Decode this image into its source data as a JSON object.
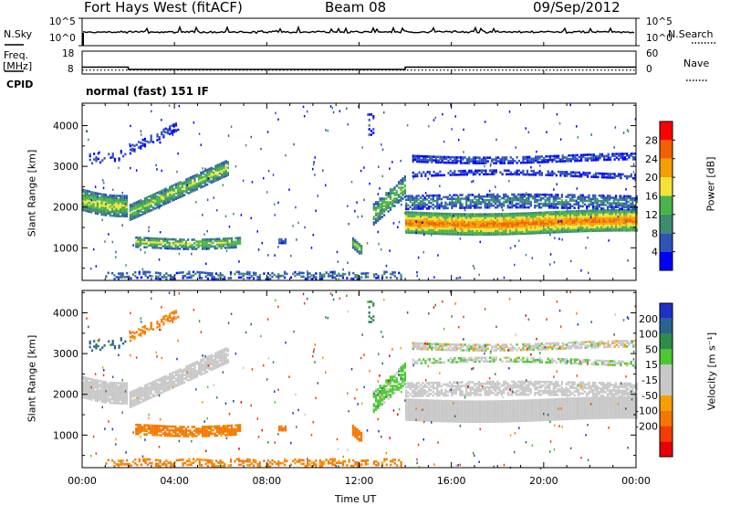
{
  "header": {
    "station": "Fort Hays West (fitACF)",
    "beam": "Beam 08",
    "date": "09/Sep/2012"
  },
  "side_labels": {
    "n_sky": "N.Sky",
    "freq": "Freq.",
    "mhz": "[MHz]",
    "cpid": "CPID",
    "n_search": "N.Search",
    "nave": "Nave"
  },
  "cpid_text": "normal (fast) 151 IF",
  "colors": {
    "power": [
      "#0000ff",
      "#2e54b8",
      "#3c8c6e",
      "#48b44a",
      "#f4e23a",
      "#f4a000",
      "#f46000",
      "#ff0000"
    ],
    "velocity": [
      "#e80000",
      "#f23c00",
      "#f47800",
      "#f5a000",
      "#c8c8c8",
      "#c8c8c8",
      "#4cc832",
      "#2e8c46",
      "#28648c",
      "#1e32c8"
    ]
  },
  "chart_data": [
    {
      "type": "line",
      "title": "Fort Hays West (fitACF)",
      "series": [
        {
          "name": "N.Sky",
          "x": [
            "00:00",
            "24:00"
          ],
          "values": [
            3,
            3
          ]
        }
      ],
      "ytick_labels": [
        "10^5",
        "10^0"
      ],
      "right_ytick_labels": [
        "10^5",
        "10^0"
      ],
      "ylim_labels": [
        "10^0",
        "10^5"
      ]
    },
    {
      "type": "line",
      "x": [
        "00:00",
        "02:00",
        "02:00",
        "14:00",
        "14:00",
        "24:00"
      ],
      "series": [
        {
          "name": "Freq.",
          "values": [
            11.0,
            11.0,
            10.0,
            10.0,
            11.0,
            11.0
          ]
        },
        {
          "name": "Nave",
          "values": [
            9.7,
            9.7,
            9.7,
            9.7,
            9.7,
            9.7
          ]
        }
      ],
      "yticks": [
        8,
        18
      ],
      "right_yticks": [
        0,
        60
      ]
    },
    {
      "type": "heatmap",
      "ylabel": "Slant Range [km]",
      "yticks": [
        1000,
        2000,
        3000,
        4000
      ],
      "ylim": [
        200,
        4550
      ],
      "xlim_hours": [
        0,
        24
      ],
      "colorbar_label": "Power [dB]",
      "colorbar_ticks": [
        4,
        8,
        12,
        16,
        20,
        24,
        28
      ],
      "colorbar_range": [
        0,
        32
      ]
    },
    {
      "type": "heatmap",
      "ylabel": "Slant Range [km]",
      "xlabel": "Time UT",
      "xticks": [
        "00:00",
        "04:00",
        "08:00",
        "12:00",
        "16:00",
        "20:00",
        "00:00"
      ],
      "yticks": [
        1000,
        2000,
        3000,
        4000
      ],
      "ylim": [
        200,
        4550
      ],
      "xlim_hours": [
        0,
        24
      ],
      "colorbar_label": "Velocity [m s⁻¹]",
      "colorbar_ticks": [
        200,
        100,
        50,
        15,
        -15,
        -50,
        -100,
        -200
      ]
    }
  ]
}
